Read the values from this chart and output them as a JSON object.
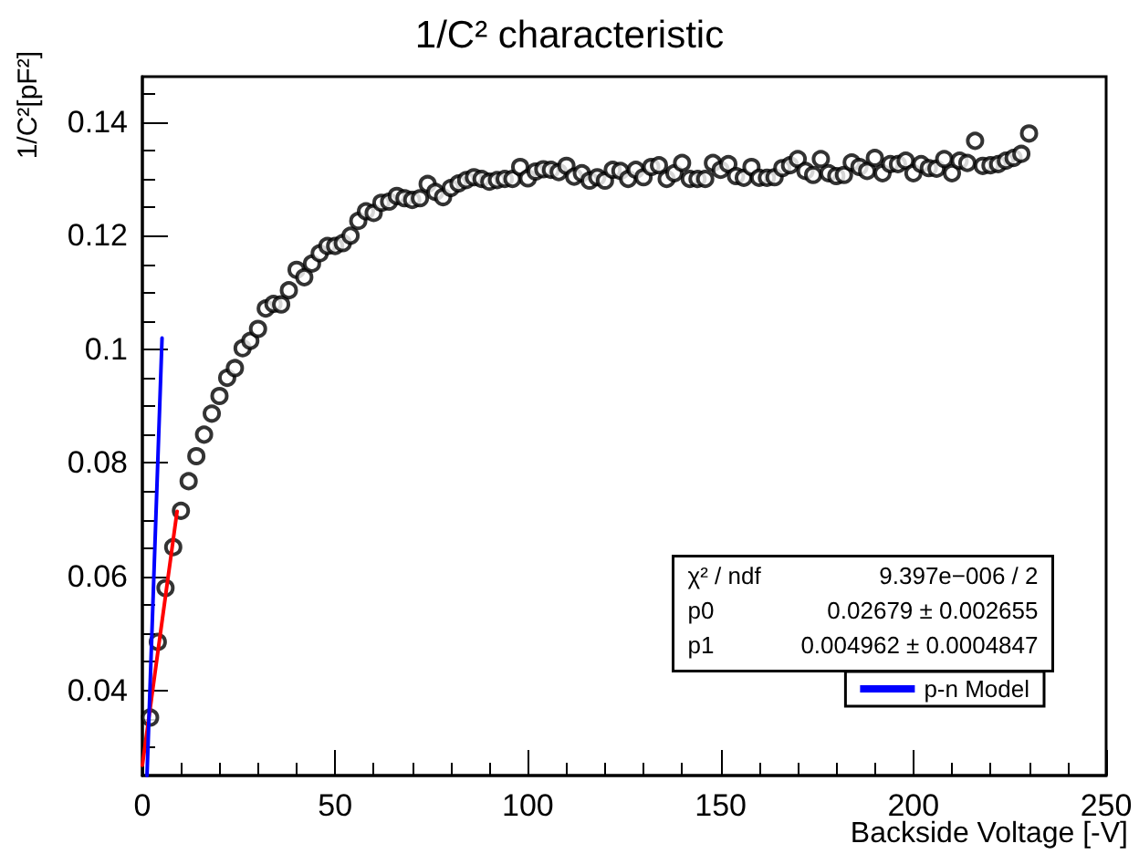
{
  "chart_data": {
    "type": "scatter",
    "title": "1/C² characteristic",
    "xlabel": "Backside Voltage [-V]",
    "ylabel": "1/C²[pF²]",
    "xlim": [
      0,
      250
    ],
    "xticks": [
      0,
      50,
      100,
      150,
      200,
      250
    ],
    "ylim": [
      0.025,
      0.148
    ],
    "yticks": [
      0.04,
      0.06,
      0.08,
      0.1,
      0.12,
      0.14
    ],
    "grid": false,
    "legend": "bottom right",
    "marker": "circle",
    "annotations": [
      "χ² / ndf",
      "9.397e−006 / 2",
      "p0",
      "0.02679 ± 0.002655",
      "p1",
      "0.004962 ± 0.0004847"
    ],
    "series": [
      {
        "color": "#000000",
        "x": [
          2,
          4,
          6,
          8,
          10,
          12,
          14,
          16,
          18,
          20,
          22,
          24,
          26,
          28,
          30,
          32,
          34,
          36,
          38,
          40,
          42,
          44,
          46,
          48,
          50,
          52,
          54,
          56,
          58,
          60,
          62,
          64,
          66,
          68,
          70,
          72,
          74,
          76,
          78,
          80,
          82,
          84,
          86,
          88,
          90,
          92,
          94,
          96,
          98,
          100,
          102,
          104,
          106,
          108,
          110,
          112,
          114,
          116,
          118,
          120,
          122,
          124,
          126,
          128,
          130,
          132,
          134,
          136,
          138,
          140,
          142,
          144,
          146,
          148,
          150,
          152,
          154,
          156,
          158,
          160,
          162,
          164,
          166,
          168,
          170,
          172,
          174,
          176,
          178,
          180,
          182,
          184,
          186,
          188,
          190,
          192,
          194,
          196,
          198,
          200,
          202,
          204,
          206,
          208,
          210,
          212,
          214,
          216,
          218,
          220,
          222,
          224,
          226,
          228,
          230
        ],
        "values": [
          0.0352,
          0.0485,
          0.058,
          0.0652,
          0.0716,
          0.0768,
          0.0812,
          0.085,
          0.0887,
          0.0918,
          0.095,
          0.0967,
          0.1002,
          0.1015,
          0.1036,
          0.1072,
          0.108,
          0.1079,
          0.1104,
          0.114,
          0.1127,
          0.1151,
          0.1169,
          0.1182,
          0.1182,
          0.1187,
          0.12,
          0.1226,
          0.1243,
          0.124,
          0.1258,
          0.126,
          0.127,
          0.1266,
          0.1263,
          0.1266,
          0.1291,
          0.1277,
          0.1268,
          0.1284,
          0.1292,
          0.1298,
          0.1303,
          0.13,
          0.1295,
          0.1298,
          0.13,
          0.13,
          0.1321,
          0.1301,
          0.1313,
          0.1317,
          0.1316,
          0.1312,
          0.1323,
          0.1304,
          0.131,
          0.1297,
          0.1303,
          0.1297,
          0.1316,
          0.1314,
          0.13,
          0.1316,
          0.1303,
          0.1321,
          0.1324,
          0.13,
          0.131,
          0.1328,
          0.13,
          0.13,
          0.13,
          0.1328,
          0.1316,
          0.1326,
          0.1305,
          0.1302,
          0.1321,
          0.1302,
          0.1302,
          0.1303,
          0.1319,
          0.1324,
          0.1335,
          0.1314,
          0.1307,
          0.1335,
          0.131,
          0.1305,
          0.1307,
          0.1329,
          0.1321,
          0.1314,
          0.1337,
          0.131,
          0.1326,
          0.1326,
          0.1332,
          0.131,
          0.1326,
          0.1319,
          0.1318,
          0.1335,
          0.131,
          0.1332,
          0.1328,
          0.1367,
          0.1323,
          0.1324,
          0.1326,
          0.1332,
          0.1337,
          0.1344,
          0.138
        ]
      },
      {
        "type": "line",
        "color": "#ff0000",
        "x": [
          0,
          9
        ],
        "values": [
          0.0268,
          0.0715
        ],
        "marker": "none"
      },
      {
        "type": "line",
        "name": "p-n Model",
        "color": "#0000ff",
        "x": [
          1.2,
          5.1
        ],
        "values": [
          0.025,
          0.102
        ],
        "marker": "none"
      }
    ]
  }
}
